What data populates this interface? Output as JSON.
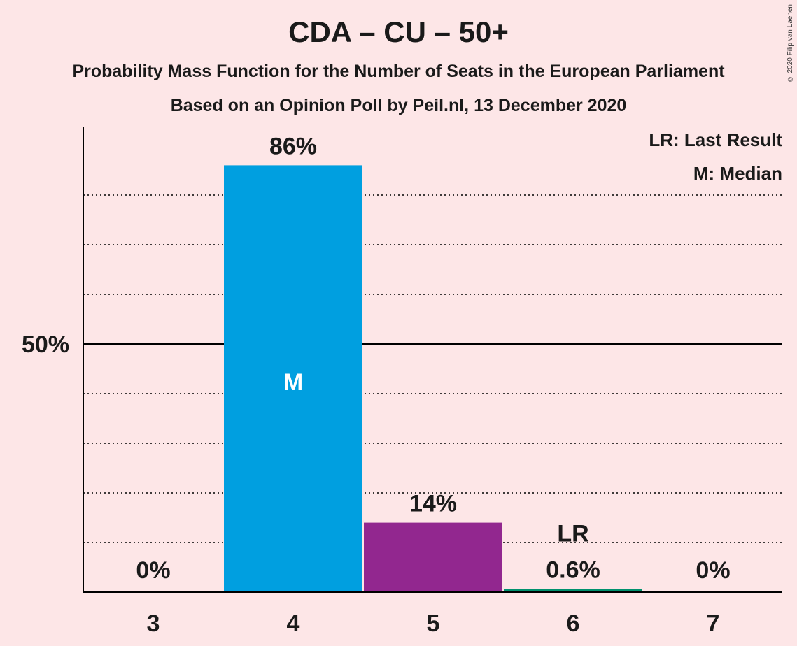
{
  "header": {
    "title": "CDA – CU – 50+",
    "subtitle1": "Probability Mass Function for the Number of Seats in the European Parliament",
    "subtitle2": "Based on an Opinion Poll by Peil.nl, 13 December 2020",
    "copyright": "© 2020 Filip van Laenen"
  },
  "legend": {
    "last_result": "LR: Last Result",
    "median": "M: Median"
  },
  "chart_data": {
    "type": "bar",
    "categories": [
      "3",
      "4",
      "5",
      "6",
      "7"
    ],
    "values": [
      0,
      86,
      14,
      0.6,
      0
    ],
    "value_labels": [
      "0%",
      "86%",
      "14%",
      "0.6%",
      "0%"
    ],
    "colors": [
      "#009fe0",
      "#009fe0",
      "#92278f",
      "#00916e",
      "#00916e"
    ],
    "median_category": "4",
    "median_label": "M",
    "last_result_category": "6",
    "last_result_label": "LR",
    "y_tick_label": "50%",
    "ylim": [
      0,
      94
    ],
    "grid": "dotted every 10%, solid at 50%",
    "legend_position": "top-right"
  }
}
